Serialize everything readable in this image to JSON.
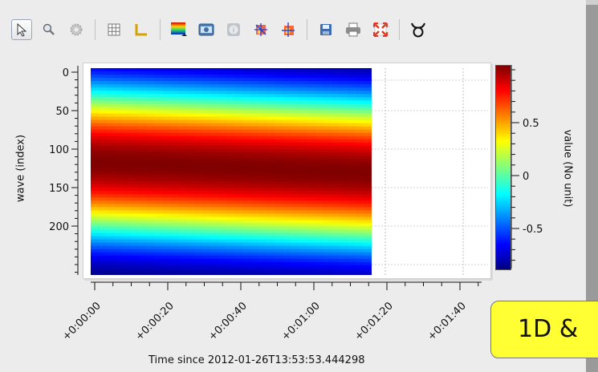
{
  "toolbar": {
    "tools": [
      {
        "name": "pointer-icon",
        "active": true
      },
      {
        "name": "zoom-icon"
      },
      {
        "name": "settings-icon"
      },
      {
        "name": "grid-icon"
      },
      {
        "name": "axes-icon"
      },
      {
        "name": "colormap-icon"
      },
      {
        "name": "screenshot-icon"
      },
      {
        "name": "info-icon"
      },
      {
        "name": "histogram-icon"
      },
      {
        "name": "profile-icon"
      },
      {
        "name": "save-icon"
      },
      {
        "name": "print-icon"
      },
      {
        "name": "fit-icon"
      },
      {
        "name": "taurus-icon"
      }
    ]
  },
  "plot": {
    "ylabel": "wave (index)",
    "xtitle": "Time since 2012-01-26T13:53:53.444298",
    "yticks": [
      "0",
      "50",
      "100",
      "150",
      "200"
    ],
    "xticks": [
      "+0:00:00",
      "+0:00:20",
      "+0:00:40",
      "+0:01:00",
      "+0:01:20",
      "+0:01:40"
    ],
    "colorbar_label": "value (No unit)",
    "colorbar_ticks": [
      "0.5",
      "0",
      "-0.5"
    ]
  },
  "badge": {
    "text": "1D &"
  },
  "colors": {
    "badge": "#ffff33",
    "background": "#ececec"
  },
  "chart_data": {
    "type": "heatmap",
    "x_range_seconds": [
      0,
      77
    ],
    "y_range_index": [
      0,
      256
    ],
    "value_range": [
      -0.85,
      0.85
    ],
    "colormap": "jet",
    "pattern": "sinusoidal band drifting downward with time"
  }
}
